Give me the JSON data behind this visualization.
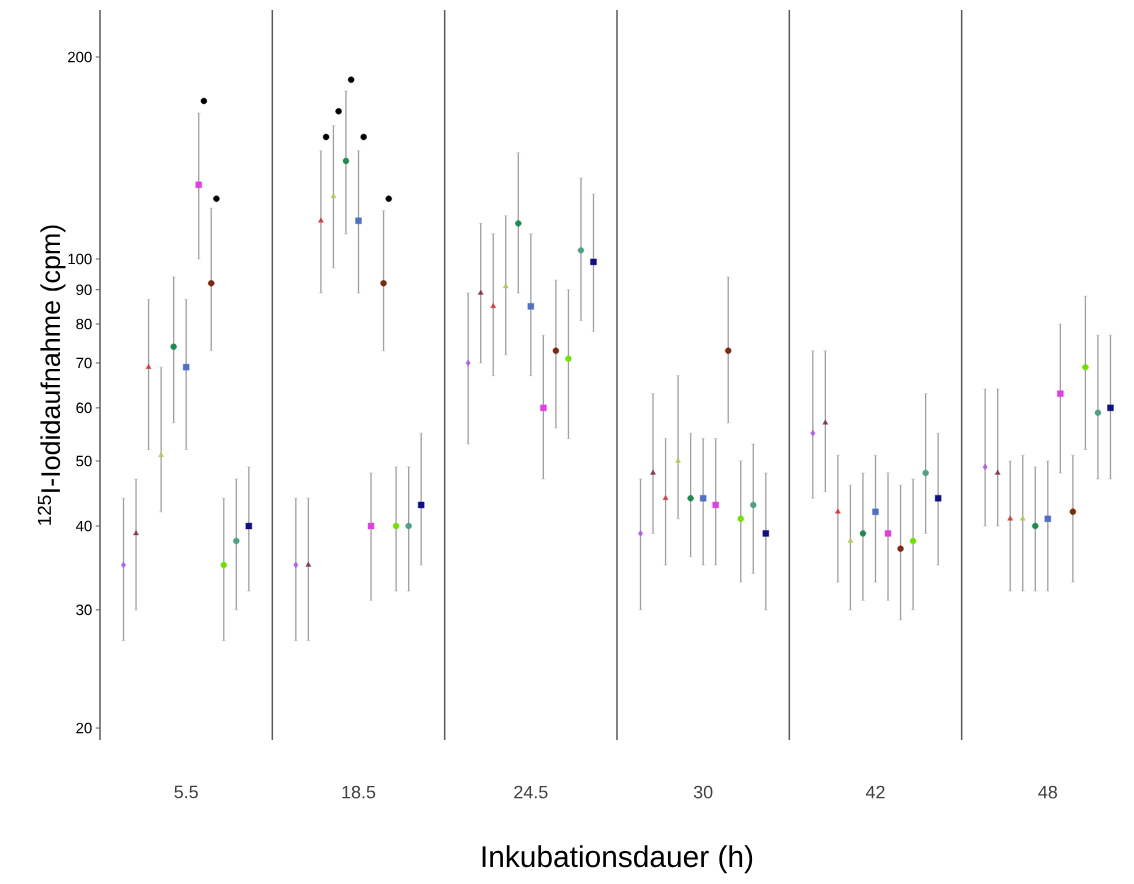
{
  "chart_data": {
    "type": "scatter",
    "xlabel": "Inkubationsdauer (h)",
    "ylabel": "$^{125}$I-Iodidaufnahme (cpm)",
    "categories": [
      "5.5",
      "18.5",
      "24.5",
      "30",
      "42",
      "48"
    ],
    "log": "y",
    "grid": "x",
    "ylim": [
      19.2,
      235
    ],
    "yticks": [
      20,
      30,
      40,
      50,
      60,
      70,
      80,
      90,
      100,
      200
    ],
    "series": [
      {
        "color": "#b060e8",
        "marker": "diamond",
        "values": [
          35,
          35,
          70,
          39,
          55,
          49
        ],
        "errors": [
          [
            27,
            44
          ],
          [
            27,
            44
          ],
          [
            53,
            89
          ],
          [
            30,
            47
          ],
          [
            44,
            73
          ],
          [
            40,
            64
          ]
        ]
      },
      {
        "color": "#8b3a4a",
        "marker": "triangle",
        "values": [
          39,
          35,
          89,
          48,
          57,
          48
        ],
        "errors": [
          [
            30,
            47
          ],
          [
            27,
            44
          ],
          [
            70,
            113
          ],
          [
            39,
            63
          ],
          [
            45,
            73
          ],
          [
            40,
            64
          ]
        ]
      },
      {
        "color": "#d04040",
        "marker": "triangle",
        "values": [
          69,
          114,
          85,
          44,
          42,
          41
        ],
        "errors": [
          [
            52,
            87
          ],
          [
            89,
            145
          ],
          [
            67,
            109
          ],
          [
            35,
            54
          ],
          [
            33,
            51
          ],
          [
            32,
            50
          ]
        ]
      },
      {
        "color": "#b8c860",
        "marker": "triangle",
        "values": [
          51,
          124,
          91,
          50,
          38,
          41
        ],
        "errors": [
          [
            42,
            69
          ],
          [
            97,
            158
          ],
          [
            72,
            116
          ],
          [
            41,
            67
          ],
          [
            30,
            46
          ],
          [
            32,
            51
          ]
        ]
      },
      {
        "color": "#208850",
        "marker": "circle",
        "values": [
          74,
          140,
          113,
          44,
          39,
          40
        ],
        "errors": [
          [
            57,
            94
          ],
          [
            109,
            178
          ],
          [
            89,
            144
          ],
          [
            36,
            55
          ],
          [
            31,
            48
          ],
          [
            32,
            49
          ]
        ]
      },
      {
        "color": "#5070c0",
        "marker": "square",
        "values": [
          69,
          114,
          85,
          44,
          42,
          41
        ],
        "errors": [
          [
            52,
            87
          ],
          [
            89,
            145
          ],
          [
            67,
            109
          ],
          [
            35,
            54
          ],
          [
            33,
            51
          ],
          [
            32,
            50
          ]
        ]
      },
      {
        "color": "#e040e0",
        "marker": "square",
        "values": [
          129,
          40,
          60,
          43,
          39,
          63
        ],
        "errors": [
          [
            100,
            165
          ],
          [
            31,
            48
          ],
          [
            47,
            77
          ],
          [
            35,
            54
          ],
          [
            31,
            48
          ],
          [
            48,
            80
          ]
        ]
      },
      {
        "color": "#7a2a10",
        "marker": "circle",
        "values": [
          92,
          92,
          73,
          73,
          37,
          42
        ],
        "errors": [
          [
            73,
            119
          ],
          [
            73,
            118
          ],
          [
            56,
            93
          ],
          [
            57,
            94
          ],
          [
            29,
            46
          ],
          [
            33,
            51
          ]
        ]
      },
      {
        "color": "#70e000",
        "marker": "circle",
        "values": [
          35,
          40,
          71,
          41,
          38,
          69
        ],
        "errors": [
          [
            27,
            44
          ],
          [
            32,
            49
          ],
          [
            54,
            90
          ],
          [
            33,
            50
          ],
          [
            30,
            47
          ],
          [
            52,
            88
          ]
        ]
      },
      {
        "color": "#50a088",
        "marker": "circle",
        "values": [
          38,
          40,
          103,
          43,
          48,
          59
        ],
        "errors": [
          [
            30,
            47
          ],
          [
            32,
            49
          ],
          [
            81,
            132
          ],
          [
            34,
            53
          ],
          [
            39,
            63
          ],
          [
            47,
            77
          ]
        ]
      },
      {
        "color": "#101080",
        "marker": "square",
        "values": [
          40,
          43,
          99,
          39,
          44,
          60
        ],
        "errors": [
          [
            32,
            49
          ],
          [
            35,
            55
          ],
          [
            78,
            125
          ],
          [
            30,
            48
          ],
          [
            35,
            55
          ],
          [
            47,
            77
          ]
        ]
      },
      {
        "color": "#000000",
        "marker": "circle",
        "x": [
          "5.5",
          "5.5",
          "18.5",
          "18.5",
          "18.5",
          "18.5",
          "18.5"
        ],
        "values": [
          172,
          123,
          152,
          166,
          185,
          152,
          123
        ]
      }
    ]
  }
}
